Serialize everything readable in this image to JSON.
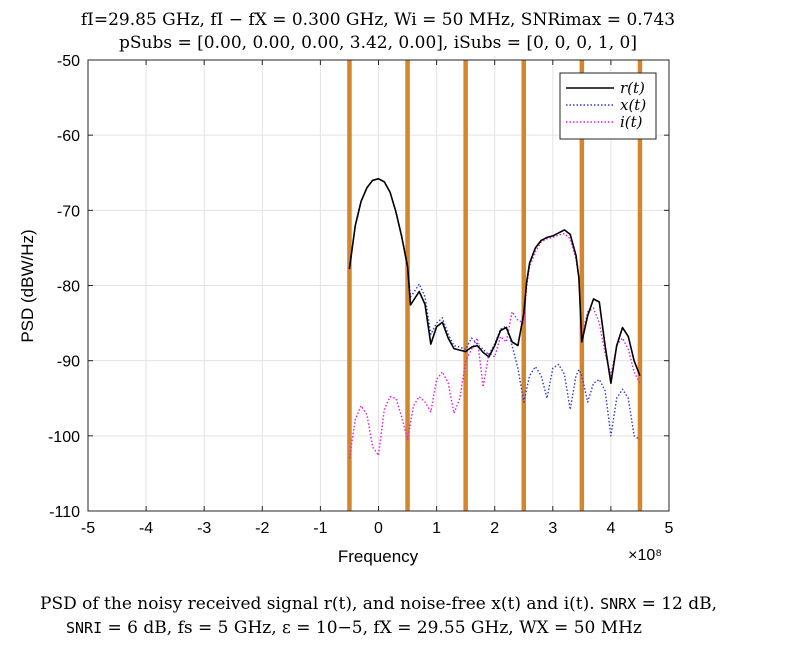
{
  "chart_data": {
    "type": "line",
    "title_line1": "fI=29.85 GHz, fI − fX = 0.300 GHz, Wi = 50 MHz, SNRimax = 0.743",
    "title_line2": "pSubs = [0.00, 0.00, 0.00, 3.42, 0.00], iSubs = [0, 0, 0, 1, 0]",
    "xlabel": "Frequency",
    "ylabel": "PSD (dBW/Hz)",
    "x_multiplier_label": "×10⁸",
    "xlim": [
      -5,
      5
    ],
    "ylim": [
      -110,
      -50
    ],
    "xticks": [
      -5,
      -4,
      -3,
      -2,
      -1,
      0,
      1,
      2,
      3,
      4,
      5
    ],
    "yticks": [
      -50,
      -60,
      -70,
      -80,
      -90,
      -100,
      -110
    ],
    "x_tick_labels": [
      "-5",
      "-4",
      "-3",
      "-2",
      "-1",
      "0",
      "1",
      "2",
      "3",
      "4",
      "5"
    ],
    "y_tick_labels": [
      "-50",
      "-60",
      "-70",
      "-80",
      "-90",
      "-100",
      "-110"
    ],
    "grid": true,
    "legend_position": "top-right",
    "legend": [
      "r(t)",
      "x(t)",
      "i(t)"
    ],
    "subband_edges": [
      -0.5,
      0.5,
      1.5,
      2.5,
      3.5,
      4.5
    ],
    "subband_color": "#D4862C",
    "series": [
      {
        "name": "r(t)",
        "color": "#000000",
        "style": "solid",
        "x": [
          -0.5,
          -0.4,
          -0.3,
          -0.2,
          -0.1,
          0.0,
          0.1,
          0.2,
          0.3,
          0.4,
          0.5,
          0.55,
          0.6,
          0.7,
          0.8,
          0.9,
          1.0,
          1.1,
          1.2,
          1.3,
          1.4,
          1.5,
          1.6,
          1.7,
          1.8,
          1.9,
          2.0,
          2.1,
          2.2,
          2.3,
          2.4,
          2.5,
          2.55,
          2.6,
          2.7,
          2.8,
          2.9,
          3.0,
          3.1,
          3.2,
          3.3,
          3.4,
          3.45,
          3.5,
          3.6,
          3.7,
          3.8,
          3.9,
          4.0,
          4.1,
          4.2,
          4.3,
          4.4,
          4.5
        ],
        "y": [
          -77.8,
          -72.0,
          -68.8,
          -67.0,
          -66.0,
          -65.8,
          -66.2,
          -67.6,
          -70.2,
          -73.5,
          -77.5,
          -82.6,
          -82.0,
          -80.8,
          -82.5,
          -87.8,
          -85.5,
          -84.9,
          -87.0,
          -88.4,
          -88.6,
          -88.8,
          -88.2,
          -88.0,
          -88.9,
          -89.5,
          -88.0,
          -86.0,
          -85.6,
          -87.5,
          -88.0,
          -83.7,
          -79.5,
          -77.0,
          -75.0,
          -74.0,
          -73.6,
          -73.4,
          -73.0,
          -72.6,
          -73.2,
          -76.0,
          -79.0,
          -87.5,
          -84.0,
          -81.8,
          -82.2,
          -88.0,
          -93.0,
          -88.0,
          -85.6,
          -86.8,
          -90.0,
          -92.0
        ]
      },
      {
        "name": "x(t)",
        "color": "#2B3BD6",
        "style": "dotted",
        "x": [
          -0.5,
          -0.4,
          -0.3,
          -0.2,
          -0.1,
          0.0,
          0.1,
          0.2,
          0.3,
          0.4,
          0.5,
          0.55,
          0.6,
          0.7,
          0.8,
          0.9,
          1.0,
          1.1,
          1.2,
          1.3,
          1.4,
          1.5,
          1.6,
          1.7,
          1.8,
          1.9,
          2.0,
          2.1,
          2.2,
          2.3,
          2.4,
          2.5,
          2.6,
          2.7,
          2.8,
          2.9,
          3.0,
          3.1,
          3.2,
          3.3,
          3.4,
          3.45,
          3.5,
          3.6,
          3.7,
          3.8,
          3.9,
          4.0,
          4.1,
          4.2,
          4.3,
          4.4,
          4.5
        ],
        "y": [
          -77.8,
          -72.0,
          -68.8,
          -67.0,
          -66.0,
          -65.8,
          -66.2,
          -67.6,
          -70.2,
          -73.5,
          -77.5,
          -81.5,
          -81.0,
          -79.8,
          -81.5,
          -86.5,
          -85.0,
          -84.3,
          -86.5,
          -88.0,
          -88.2,
          -88.5,
          -87.0,
          -87.8,
          -88.5,
          -89.2,
          -87.8,
          -85.8,
          -85.4,
          -88.0,
          -91.0,
          -95.5,
          -92.0,
          -90.8,
          -92.0,
          -95.0,
          -91.0,
          -90.5,
          -91.8,
          -96.5,
          -92.0,
          -91.2,
          -92.0,
          -95.5,
          -93.0,
          -92.5,
          -94.0,
          -100.0,
          -95.0,
          -93.8,
          -95.0,
          -100.0,
          -100.5
        ]
      },
      {
        "name": "i(t)",
        "color": "#E61AE6",
        "style": "dotted",
        "x": [
          -0.5,
          -0.4,
          -0.3,
          -0.2,
          -0.1,
          0.0,
          0.1,
          0.2,
          0.3,
          0.4,
          0.5,
          0.6,
          0.7,
          0.8,
          0.9,
          1.0,
          1.1,
          1.2,
          1.3,
          1.4,
          1.5,
          1.6,
          1.7,
          1.8,
          1.9,
          2.0,
          2.1,
          2.2,
          2.3,
          2.4,
          2.5,
          2.55,
          2.6,
          2.7,
          2.8,
          2.9,
          3.0,
          3.1,
          3.2,
          3.3,
          3.4,
          3.45,
          3.5,
          3.6,
          3.7,
          3.8,
          3.9,
          4.0,
          4.1,
          4.2,
          4.3,
          4.4,
          4.5
        ],
        "y": [
          -103.0,
          -97.8,
          -96.0,
          -97.2,
          -101.5,
          -102.6,
          -96.5,
          -94.8,
          -95.0,
          -97.5,
          -100.5,
          -96.0,
          -94.8,
          -95.5,
          -96.8,
          -92.5,
          -91.5,
          -93.0,
          -97.0,
          -95.0,
          -90.0,
          -88.5,
          -87.0,
          -93.5,
          -89.0,
          -89.5,
          -86.8,
          -87.5,
          -83.5,
          -84.6,
          -85.0,
          -80.0,
          -77.5,
          -75.5,
          -74.2,
          -73.8,
          -73.6,
          -73.3,
          -73.1,
          -73.8,
          -76.5,
          -79.0,
          -86.8,
          -83.5,
          -83.0,
          -85.0,
          -89.0,
          -92.0,
          -88.0,
          -87.0,
          -88.5,
          -91.5,
          -93.0
        ]
      }
    ]
  },
  "caption": {
    "line1_prefix": "PSD of the noisy received signal r(t), and noise-free x(t) and i(t). ",
    "snr_x_label": "SNRX",
    "line1_suffix": " = 12 dB,",
    "snr_i_label": "SNRI",
    "line2_suffix": " = 6 dB, fs = 5 GHz, ε = 10−5, fX = 29.55 GHz, WX = 50 MHz"
  }
}
